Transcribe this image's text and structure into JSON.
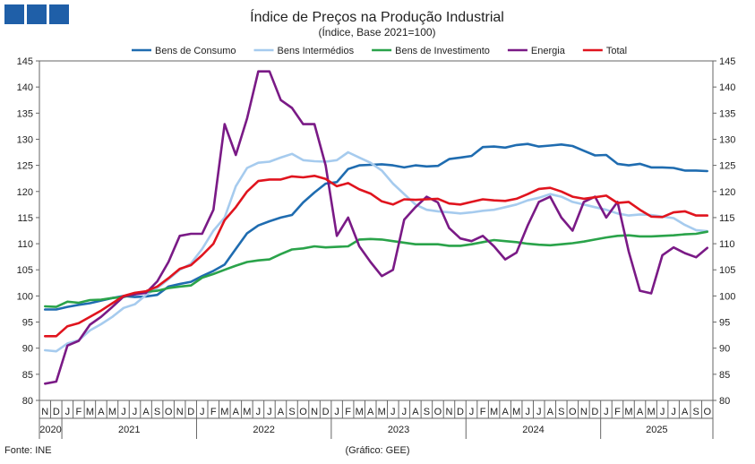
{
  "chart_data": {
    "type": "line",
    "title": "Índice de Preços na Produção Industrial",
    "subtitle": "(Índice, Base 2021=100)",
    "xlabel": "",
    "ylabel": "",
    "ylim": [
      80,
      145
    ],
    "yticks": [
      80,
      85,
      90,
      95,
      100,
      105,
      110,
      115,
      120,
      125,
      130,
      135,
      140,
      145
    ],
    "months": [
      "N",
      "D",
      "J",
      "F",
      "M",
      "A",
      "M",
      "J",
      "J",
      "A",
      "S",
      "O",
      "N",
      "D",
      "J",
      "F",
      "M",
      "A",
      "M",
      "J",
      "J",
      "A",
      "S",
      "O",
      "N",
      "D",
      "J",
      "F",
      "M",
      "A",
      "M",
      "J",
      "J",
      "A",
      "S",
      "O",
      "N",
      "D",
      "J",
      "F",
      "M",
      "A",
      "M",
      "J",
      "J",
      "A",
      "S",
      "O",
      "N",
      "D",
      "J",
      "F",
      "M",
      "A",
      "M",
      "J",
      "J",
      "A",
      "S",
      "O"
    ],
    "years": [
      {
        "label": "2020",
        "start": 0,
        "end": 1
      },
      {
        "label": "2021",
        "start": 2,
        "end": 13
      },
      {
        "label": "2022",
        "start": 14,
        "end": 25
      },
      {
        "label": "2023",
        "start": 26,
        "end": 37
      },
      {
        "label": "2024",
        "start": 38,
        "end": 49
      },
      {
        "label": "2025",
        "start": 50,
        "end": 59
      }
    ],
    "series": [
      {
        "name": "Bens de Consumo",
        "color": "#1f6cb0",
        "values": [
          97.4,
          97.4,
          97.9,
          98.3,
          98.6,
          99.1,
          99.6,
          100.0,
          99.8,
          99.9,
          100.2,
          101.8,
          102.3,
          102.7,
          103.8,
          104.8,
          106.0,
          109.0,
          112.0,
          113.5,
          114.3,
          115.0,
          115.5,
          117.9,
          119.8,
          121.5,
          121.8,
          124.3,
          125.0,
          125.1,
          125.2,
          125.0,
          124.6,
          125.0,
          124.8,
          124.9,
          126.2,
          126.5,
          126.8,
          128.5,
          128.6,
          128.4,
          128.9,
          129.1,
          128.6,
          128.8,
          129.0,
          128.7,
          127.8,
          126.9,
          127.0,
          125.3,
          125.0,
          125.3,
          124.6,
          124.6,
          124.5,
          124.0,
          124.0,
          123.9
        ]
      },
      {
        "name": "Bens Intermédios",
        "color": "#a6cbee",
        "values": [
          89.6,
          89.4,
          90.9,
          91.5,
          93.4,
          94.6,
          96.0,
          97.7,
          98.4,
          100.2,
          101.5,
          103.2,
          105.0,
          106.2,
          109.0,
          112.5,
          115.0,
          121.0,
          124.5,
          125.5,
          125.7,
          126.5,
          127.2,
          126.0,
          125.8,
          125.7,
          126.0,
          127.5,
          126.5,
          125.5,
          124.0,
          121.5,
          119.5,
          117.5,
          116.5,
          116.2,
          116.0,
          115.8,
          116.0,
          116.3,
          116.5,
          117.0,
          117.5,
          118.3,
          118.8,
          119.5,
          119.0,
          118.0,
          117.5,
          117.0,
          116.5,
          115.8,
          115.4,
          115.6,
          115.5,
          115.2,
          114.9,
          113.6,
          112.6,
          112.4
        ]
      },
      {
        "name": "Bens de Investimento",
        "color": "#2aa34a",
        "values": [
          98.0,
          97.9,
          98.9,
          98.7,
          99.2,
          99.3,
          99.6,
          99.8,
          100.3,
          100.8,
          101.0,
          101.5,
          101.8,
          102.0,
          103.5,
          104.2,
          105.0,
          105.8,
          106.5,
          106.8,
          107.0,
          108.0,
          108.9,
          109.1,
          109.5,
          109.3,
          109.4,
          109.5,
          110.8,
          110.9,
          110.8,
          110.5,
          110.2,
          109.9,
          109.9,
          109.9,
          109.6,
          109.6,
          109.9,
          110.3,
          110.7,
          110.5,
          110.3,
          110.0,
          109.8,
          109.7,
          109.9,
          110.1,
          110.4,
          110.8,
          111.2,
          111.5,
          111.6,
          111.4,
          111.4,
          111.5,
          111.6,
          111.8,
          111.9,
          112.3
        ]
      },
      {
        "name": "Energia",
        "color": "#7a1a86",
        "values": [
          83.2,
          83.6,
          90.5,
          91.4,
          94.5,
          96.0,
          97.9,
          99.9,
          100.3,
          100.6,
          102.8,
          106.5,
          111.5,
          111.9,
          111.9,
          116.5,
          132.9,
          127.0,
          134.0,
          143.0,
          143.0,
          137.5,
          136.0,
          132.9,
          132.9,
          125.0,
          111.5,
          115.0,
          109.5,
          106.5,
          103.8,
          105.0,
          114.6,
          117.0,
          119.0,
          117.9,
          113.0,
          111.0,
          110.5,
          111.5,
          109.5,
          107.0,
          108.3,
          113.5,
          118.0,
          119.0,
          115.0,
          112.5,
          118.0,
          119.0,
          115.0,
          118.0,
          108.5,
          101.0,
          100.5,
          107.8,
          109.3,
          108.2,
          107.4,
          109.2
        ]
      },
      {
        "name": "Total",
        "color": "#e0141e",
        "values": [
          92.3,
          92.3,
          94.2,
          94.8,
          96.0,
          97.2,
          98.6,
          100.0,
          100.6,
          100.9,
          101.8,
          103.4,
          105.2,
          105.9,
          107.8,
          110.0,
          114.5,
          117.0,
          120.0,
          122.0,
          122.3,
          122.3,
          122.9,
          122.7,
          123.0,
          122.4,
          121.0,
          121.6,
          120.4,
          119.6,
          118.1,
          117.5,
          118.5,
          118.4,
          118.5,
          118.6,
          117.7,
          117.5,
          118.0,
          118.5,
          118.3,
          118.2,
          118.6,
          119.5,
          120.5,
          120.7,
          120.0,
          119.0,
          118.6,
          118.9,
          119.2,
          117.8,
          118.0,
          116.5,
          115.2,
          115.1,
          116.0,
          116.2,
          115.4,
          115.4
        ]
      }
    ]
  },
  "footer": {
    "source": "Fonte: INE",
    "credit": "(Gráfico: GEE)"
  }
}
